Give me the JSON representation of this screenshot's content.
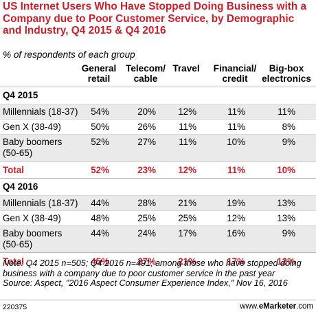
{
  "header": {
    "title": "US Internet Users Who Have Stopped Doing Business with a Company due to Poor Customer Service, by Demographic and Industry, Q4 2015 & Q4 2016",
    "subtitle": "% of respondents of each group"
  },
  "chart_data": {
    "type": "table",
    "title": "US Internet Users Who Have Stopped Doing Business with a Company due to Poor Customer Service, by Demographic and Industry, Q4 2015 & Q4 2016",
    "subtitle": "% of respondents of each group",
    "columns": [
      {
        "line1": "General",
        "line2": "retail"
      },
      {
        "line1": "Telecom/",
        "line2": "cable"
      },
      {
        "line1": "Travel",
        "line2": ""
      },
      {
        "line1": "Financial/",
        "line2": "credit"
      },
      {
        "line1": "Big-box",
        "line2": "electronics"
      }
    ],
    "sections": [
      {
        "label": "Q4 2015",
        "rows": [
          {
            "label": "Millennials (18-37)",
            "label2": "",
            "values": [
              "54%",
              "20%",
              "12%",
              "11%",
              "11%"
            ]
          },
          {
            "label": "Gen X (38-49)",
            "label2": "",
            "values": [
              "50%",
              "26%",
              "11%",
              "11%",
              "8%"
            ]
          },
          {
            "label": "Baby boomers",
            "label2": "(50-65)",
            "values": [
              "52%",
              "27%",
              "11%",
              "10%",
              "9%"
            ]
          }
        ],
        "total": {
          "label": "Total",
          "values": [
            "52%",
            "23%",
            "12%",
            "11%",
            "10%"
          ]
        }
      },
      {
        "label": "Q4 2016",
        "rows": [
          {
            "label": "Millennials (18-37)",
            "label2": "",
            "values": [
              "44%",
              "28%",
              "21%",
              "19%",
              "13%"
            ]
          },
          {
            "label": "Gen X (38-49)",
            "label2": "",
            "values": [
              "48%",
              "25%",
              "25%",
              "12%",
              "13%"
            ]
          },
          {
            "label": "Baby boomers",
            "label2": "(50-65)",
            "values": [
              "44%",
              "24%",
              "17%",
              "16%",
              "9%"
            ]
          }
        ],
        "total": {
          "label": "Total",
          "values": [
            "45%",
            "27%",
            "21%",
            "17%",
            "12%"
          ]
        }
      }
    ]
  },
  "notes": {
    "note": "Note: Q4 2015 n=505; Q4 2016 n=491; among those who have stopped doing business with a company due to poor customer service in the past year",
    "source": "Source: Aspect, \"2016 Aspect Consumer Experience Index,\" Nov 16, 2016"
  },
  "footer": {
    "chart_id": "220375",
    "brand_prefix": "www.",
    "brand_name": "eMarketer",
    "brand_suffix": ".com"
  },
  "colors": {
    "accent": "#cc1f2c",
    "row_shade": "#eaeaea",
    "rule": "#b8b8b8"
  }
}
